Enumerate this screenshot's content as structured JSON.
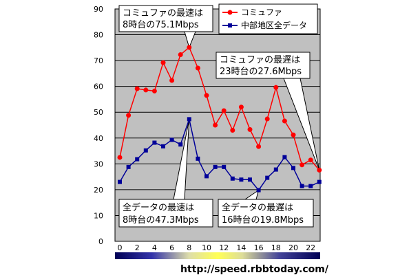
{
  "chart_data": {
    "type": "line",
    "x": [
      0,
      1,
      2,
      3,
      4,
      5,
      6,
      7,
      8,
      9,
      10,
      11,
      12,
      13,
      14,
      15,
      16,
      17,
      18,
      19,
      20,
      21,
      22,
      23
    ],
    "xticks": [
      "0",
      "2",
      "4",
      "6",
      "8",
      "10",
      "12",
      "14",
      "16",
      "18",
      "20",
      "22"
    ],
    "ylim": [
      0,
      90
    ],
    "yticks": [
      "0",
      "10",
      "20",
      "30",
      "40",
      "50",
      "60",
      "70",
      "80",
      "90"
    ],
    "grid": true,
    "legend_position": "top-right",
    "series": [
      {
        "name": "コミュファ",
        "color": "#ff0000",
        "marker": "circle",
        "values": [
          32.5,
          48.8,
          59.1,
          58.6,
          58.2,
          69.2,
          62.3,
          72.3,
          75.1,
          67.1,
          56.5,
          45.0,
          50.6,
          43.0,
          52.0,
          43.3,
          36.7,
          47.4,
          59.6,
          46.6,
          41.2,
          29.6,
          31.5,
          27.6
        ]
      },
      {
        "name": "中部地区全データ",
        "color": "#000099",
        "marker": "square",
        "values": [
          23.0,
          28.8,
          31.8,
          35.2,
          38.2,
          36.8,
          39.3,
          37.5,
          47.3,
          32.0,
          25.2,
          28.8,
          28.8,
          24.3,
          23.9,
          23.9,
          19.8,
          24.6,
          27.8,
          32.6,
          28.4,
          21.4,
          21.4,
          23.0
        ]
      }
    ],
    "annotations": [
      {
        "lines": [
          "コミュファの最速は",
          "8時台の75.1Mbps"
        ]
      },
      {
        "lines": [
          "コミュファの最遅は",
          "23時台の27.6Mbps"
        ]
      },
      {
        "lines": [
          "全データの最速は",
          "8時台の47.3Mbps"
        ]
      },
      {
        "lines": [
          "全データの最遅は",
          "16時台の19.8Mbps"
        ]
      }
    ]
  },
  "footer": {
    "url": "http://speed.rbbtoday.com/"
  }
}
